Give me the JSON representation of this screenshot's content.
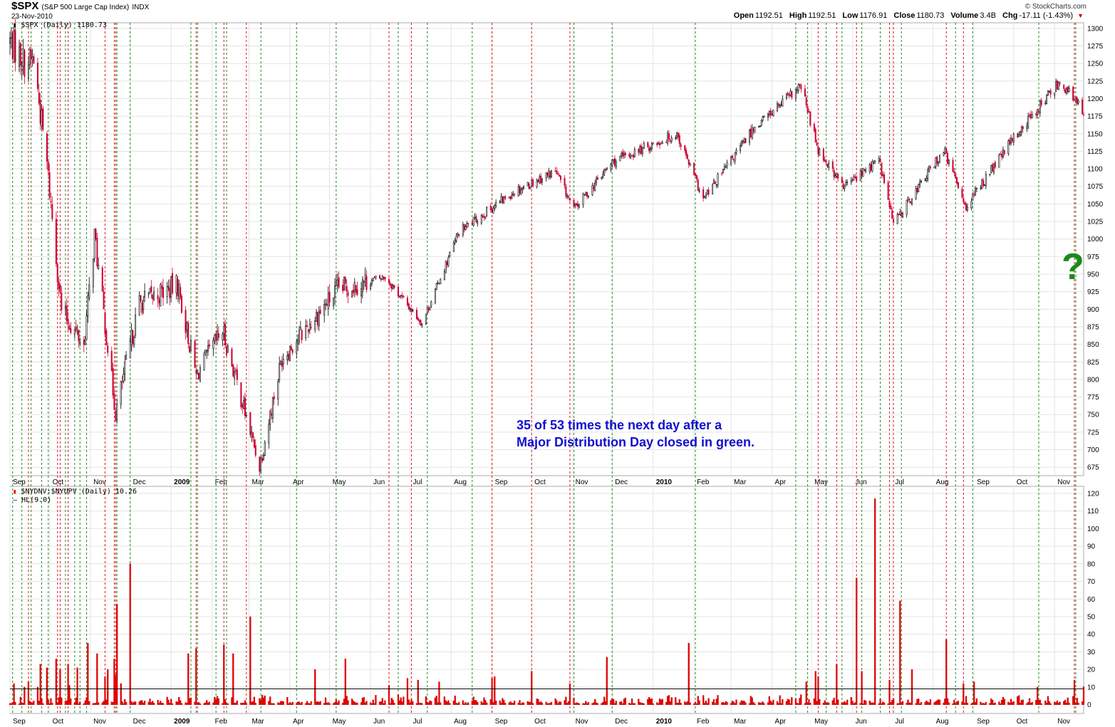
{
  "header": {
    "ticker": "$SPX",
    "name": "(S&P 500 Large Cap Index)",
    "exchange": "INDX",
    "date": "23-Nov-2010",
    "brand": "© StockCharts.com",
    "open_label": "Open",
    "open": "1192.51",
    "high_label": "High",
    "high": "1192.51",
    "low_label": "Low",
    "low": "1176.91",
    "close_label": "Close",
    "close": "1180.73",
    "volume_label": "Volume",
    "volume": "3.4B",
    "chg_label": "Chg",
    "chg": "-17.11 (-1.43%)",
    "chg_arrow": "▼"
  },
  "annotations": {
    "note_line1": "35 of 53 times the next day after a",
    "note_line2": "Major Distribution Day closed in green.",
    "question_mark": "?"
  },
  "colors": {
    "up_candle": "#000000",
    "down_candle": "#cc0033",
    "bar": "#ee0000",
    "green_line": "#1a8a1a",
    "red_line": "#dd1111",
    "note": "#1010d0",
    "grid": "#e4e4e4"
  },
  "chart_data": [
    {
      "type": "candlestick",
      "legend": "$SPX (Daily) 1180.73",
      "y_ticks": [
        675,
        700,
        725,
        750,
        775,
        800,
        825,
        850,
        875,
        900,
        925,
        950,
        975,
        1000,
        1025,
        1050,
        1075,
        1100,
        1125,
        1150,
        1175,
        1200,
        1225,
        1250,
        1275,
        1300
      ],
      "ylim": [
        663,
        1308
      ],
      "x_range": [
        "2008-09-01",
        "2010-11-23"
      ],
      "x_tick_labels": [
        "Sep",
        "Oct",
        "Nov",
        "Dec",
        "2009",
        "Feb",
        "Mar",
        "Apr",
        "May",
        "Jun",
        "Jul",
        "Aug",
        "Sep",
        "Oct",
        "Nov",
        "Dec",
        "2010",
        "Feb",
        "Mar",
        "Apr",
        "May",
        "Jun",
        "Jul",
        "Aug",
        "Sep",
        "Oct",
        "Nov"
      ],
      "key_closes": [
        [
          "2008-09-01",
          1282
        ],
        [
          "2008-09-12",
          1252
        ],
        [
          "2008-09-19",
          1255
        ],
        [
          "2008-09-29",
          1106
        ],
        [
          "2008-10-10",
          899
        ],
        [
          "2008-10-27",
          848
        ],
        [
          "2008-11-04",
          1005
        ],
        [
          "2008-11-20",
          752
        ],
        [
          "2008-12-08",
          909
        ],
        [
          "2009-01-06",
          934
        ],
        [
          "2009-01-20",
          805
        ],
        [
          "2009-02-09",
          870
        ],
        [
          "2009-03-09",
          677
        ],
        [
          "2009-03-26",
          832
        ],
        [
          "2009-05-08",
          929
        ],
        [
          "2009-06-12",
          946
        ],
        [
          "2009-07-10",
          880
        ],
        [
          "2009-08-07",
          1010
        ],
        [
          "2009-09-18",
          1068
        ],
        [
          "2009-10-19",
          1097
        ],
        [
          "2009-11-02",
          1042
        ],
        [
          "2009-12-01",
          1109
        ],
        [
          "2010-01-19",
          1150
        ],
        [
          "2010-02-08",
          1056
        ],
        [
          "2010-03-19",
          1160
        ],
        [
          "2010-04-23",
          1217
        ],
        [
          "2010-05-06",
          1128
        ],
        [
          "2010-05-25",
          1074
        ],
        [
          "2010-06-21",
          1113
        ],
        [
          "2010-07-02",
          1022
        ],
        [
          "2010-08-09",
          1127
        ],
        [
          "2010-08-26",
          1047
        ],
        [
          "2010-09-30",
          1141
        ],
        [
          "2010-11-05",
          1225
        ],
        [
          "2010-11-23",
          1180.73
        ]
      ]
    },
    {
      "type": "bar",
      "legend": "$NYDNV:$NYUPV (Daily) 10.26",
      "legend2": "HL(9.0)",
      "threshold": 9,
      "y_ticks": [
        0,
        10,
        20,
        30,
        40,
        50,
        60,
        70,
        80,
        90,
        100,
        110,
        120
      ],
      "ylim": [
        -5,
        124
      ],
      "x_tick_labels": [
        "Sep",
        "Oct",
        "Nov",
        "Dec",
        "2009",
        "Feb",
        "Mar",
        "Apr",
        "May",
        "Jun",
        "Jul",
        "Aug",
        "Sep",
        "Oct",
        "Nov",
        "Dec",
        "2010",
        "Feb",
        "Mar",
        "Apr",
        "May",
        "Jun",
        "Jul",
        "Aug",
        "Sep",
        "Oct",
        "Nov"
      ],
      "spikes": [
        [
          "2008-09-04",
          12
        ],
        [
          "2008-09-12",
          10
        ],
        [
          "2008-09-15",
          13
        ],
        [
          "2008-09-22",
          10
        ],
        [
          "2008-09-24",
          23
        ],
        [
          "2008-09-29",
          21
        ],
        [
          "2008-10-06",
          26
        ],
        [
          "2008-10-09",
          20
        ],
        [
          "2008-10-15",
          23
        ],
        [
          "2008-10-16",
          11
        ],
        [
          "2008-10-22",
          21
        ],
        [
          "2008-10-30",
          35
        ],
        [
          "2008-11-06",
          29
        ],
        [
          "2008-11-12",
          16
        ],
        [
          "2008-11-14",
          20
        ],
        [
          "2008-11-19",
          26
        ],
        [
          "2008-11-20",
          17
        ],
        [
          "2008-11-21",
          57
        ],
        [
          "2008-11-24",
          12
        ],
        [
          "2008-12-01",
          80
        ],
        [
          "2009-01-14",
          29
        ],
        [
          "2009-01-20",
          32
        ],
        [
          "2009-02-10",
          34
        ],
        [
          "2009-02-17",
          29
        ],
        [
          "2009-03-02",
          50
        ],
        [
          "2009-04-20",
          20
        ],
        [
          "2009-05-13",
          26
        ],
        [
          "2009-06-15",
          11
        ],
        [
          "2009-06-29",
          15
        ],
        [
          "2009-07-07",
          14
        ],
        [
          "2009-07-23",
          13
        ],
        [
          "2009-09-01",
          15
        ],
        [
          "2009-09-03",
          16
        ],
        [
          "2009-10-01",
          19
        ],
        [
          "2009-10-30",
          12
        ],
        [
          "2009-11-27",
          27
        ],
        [
          "2010-01-28",
          35
        ],
        [
          "2010-04-27",
          13
        ],
        [
          "2010-05-04",
          19
        ],
        [
          "2010-05-06",
          16
        ],
        [
          "2010-05-20",
          23
        ],
        [
          "2010-06-04",
          72
        ],
        [
          "2010-06-08",
          19
        ],
        [
          "2010-06-18",
          117
        ],
        [
          "2010-06-29",
          14
        ],
        [
          "2010-07-07",
          59
        ],
        [
          "2010-07-16",
          20
        ],
        [
          "2010-08-11",
          37
        ],
        [
          "2010-08-24",
          12
        ],
        [
          "2010-09-01",
          13
        ],
        [
          "2010-10-19",
          10
        ],
        [
          "2010-11-16",
          14
        ],
        [
          "2010-11-23",
          10.26
        ]
      ]
    }
  ],
  "day_lines": {
    "green": [
      "2008-09-03",
      "2008-09-10",
      "2008-09-17",
      "2008-09-25",
      "2008-09-30",
      "2008-10-13",
      "2008-10-20",
      "2008-10-24",
      "2008-10-29",
      "2008-11-21",
      "2008-12-01",
      "2009-01-16",
      "2009-01-21",
      "2009-02-04",
      "2009-02-12",
      "2009-03-10",
      "2009-04-06",
      "2009-05-06",
      "2009-06-22",
      "2009-07-14",
      "2009-08-17",
      "2009-11-02",
      "2009-12-01",
      "2010-02-02",
      "2010-04-19",
      "2010-04-28",
      "2010-05-12",
      "2010-05-24",
      "2010-06-08",
      "2010-06-22",
      "2010-07-08",
      "2010-08-18",
      "2010-08-31",
      "2010-10-20",
      "2010-11-17"
    ],
    "red": [
      "2008-09-15",
      "2008-10-07",
      "2008-10-09",
      "2008-10-15",
      "2008-11-12",
      "2008-11-19",
      "2008-11-20",
      "2009-01-20",
      "2009-02-10",
      "2009-02-27",
      "2009-06-15",
      "2009-07-02",
      "2009-09-01",
      "2009-10-01",
      "2009-10-30",
      "2010-05-06",
      "2010-05-20",
      "2010-06-04",
      "2010-06-29",
      "2010-07-02",
      "2010-08-11",
      "2010-08-24",
      "2010-11-16"
    ]
  }
}
